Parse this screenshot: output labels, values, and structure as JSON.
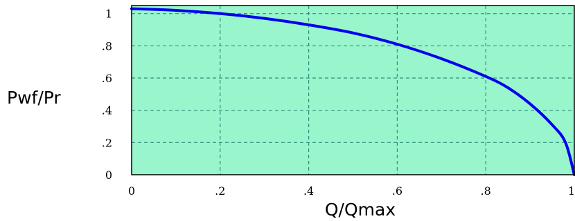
{
  "chart_data": {
    "type": "line",
    "title": "",
    "xlabel": "Q/Qmax",
    "ylabel": "Pwf/Pr",
    "xlim": [
      0,
      1
    ],
    "ylim": [
      0,
      1.05
    ],
    "x_ticks": [
      {
        "value": 0,
        "label": "0"
      },
      {
        "value": 0.2,
        "label": ".2"
      },
      {
        "value": 0.4,
        "label": ".4"
      },
      {
        "value": 0.6,
        "label": ".6"
      },
      {
        "value": 0.8,
        "label": ".8"
      },
      {
        "value": 1,
        "label": "1"
      }
    ],
    "y_ticks": [
      {
        "value": 0,
        "label": "0"
      },
      {
        "value": 0.2,
        "label": ".2"
      },
      {
        "value": 0.4,
        "label": ".4"
      },
      {
        "value": 0.6,
        "label": ".6"
      },
      {
        "value": 0.8,
        "label": ".8"
      },
      {
        "value": 1,
        "label": "1"
      }
    ],
    "grid": true,
    "background_color": "#99f5cc",
    "line_color": "#0000ee",
    "grid_color": "#2f8f7a",
    "series": [
      {
        "name": "",
        "x": [
          0,
          0.1,
          0.2,
          0.3,
          0.4,
          0.5,
          0.6,
          0.7,
          0.8,
          0.85,
          0.9,
          0.95,
          0.98,
          1.0
        ],
        "y": [
          1.03,
          1.02,
          1.0,
          0.97,
          0.93,
          0.88,
          0.81,
          0.72,
          0.61,
          0.54,
          0.44,
          0.31,
          0.2,
          0.0
        ]
      }
    ]
  }
}
